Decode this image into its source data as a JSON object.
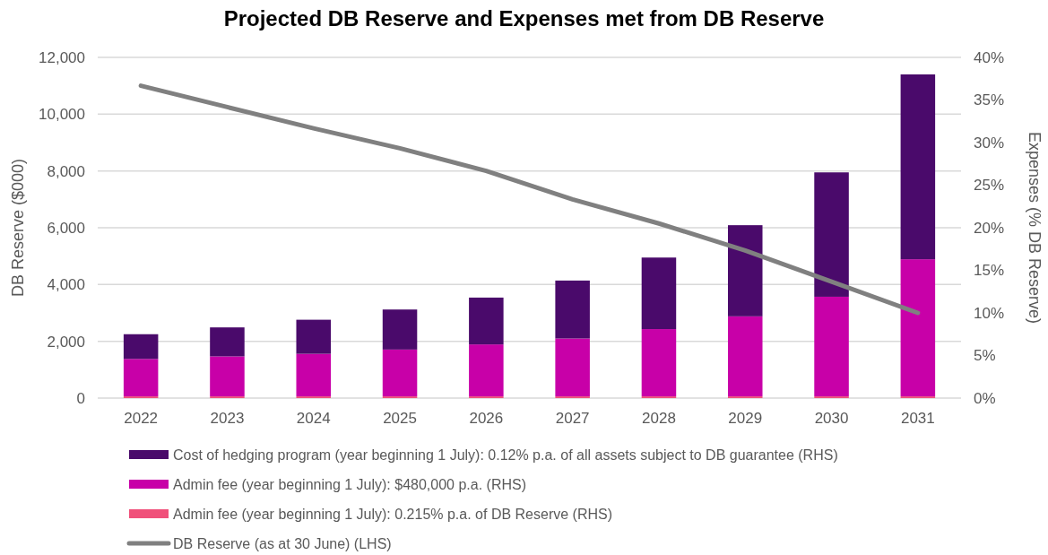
{
  "chart_data": {
    "type": "bar",
    "title": "Projected DB Reserve and Expenses met from DB Reserve",
    "ylabel": "DB Reserve ($000)",
    "y2label": "Expenses (% DB Reserve)",
    "categories": [
      "2022",
      "2023",
      "2024",
      "2025",
      "2026",
      "2027",
      "2028",
      "2029",
      "2030",
      "2031"
    ],
    "stacked": true,
    "grid": "y",
    "legend": "bottom",
    "ylim": [
      0,
      12000
    ],
    "yticks": [
      0,
      {
        "value": 2000,
        "label": "2,000"
      },
      {
        "value": 4000,
        "label": "4,000"
      },
      {
        "value": 6000,
        "label": "6,000"
      },
      {
        "value": 8000,
        "label": "8,000"
      },
      {
        "value": 10000,
        "label": "10,000"
      },
      {
        "value": 12000,
        "label": "12,000"
      }
    ],
    "y2lim": [
      0,
      40
    ],
    "y2ticks": [
      {
        "value": 0,
        "label": "0%"
      },
      {
        "value": 5,
        "label": "5%"
      },
      {
        "value": 10,
        "label": "10%"
      },
      {
        "value": 15,
        "label": "15%"
      },
      {
        "value": 20,
        "label": "20%"
      },
      {
        "value": 25,
        "label": "25%"
      },
      {
        "value": 30,
        "label": "30%"
      },
      {
        "value": 35,
        "label": "35%"
      },
      {
        "value": 40,
        "label": "40%"
      }
    ],
    "series": [
      {
        "name": "Admin fee (year beginning 1 July): 0.215% p.a. of DB Reserve (RHS)",
        "axis": "y2",
        "color": "#f0507a",
        "values": [
          0.2,
          0.2,
          0.2,
          0.2,
          0.2,
          0.2,
          0.2,
          0.2,
          0.2,
          0.2
        ]
      },
      {
        "name": "Admin fee (year beginning 1 July): $480,000 p.a. (RHS)",
        "axis": "y2",
        "color": "#c800a8",
        "values": [
          4.4,
          4.7,
          5.0,
          5.5,
          6.1,
          6.8,
          7.9,
          9.4,
          11.7,
          16.1
        ]
      },
      {
        "name": "Cost of hedging program (year beginning 1 July): 0.12% p.a. of all assets subject to DB guarantee (RHS)",
        "axis": "y2",
        "color": "#4a0a6b",
        "values": [
          2.9,
          3.4,
          4.0,
          4.7,
          5.5,
          6.8,
          8.4,
          10.7,
          14.6,
          21.7
        ]
      },
      {
        "name": "DB Reserve (as at 30 June) (LHS)",
        "type": "line",
        "axis": "y",
        "color": "#808080",
        "marker": "none",
        "line_style": "solid",
        "values": [
          11000,
          10250,
          9500,
          8800,
          8000,
          7000,
          6150,
          5200,
          4100,
          3000
        ]
      }
    ]
  }
}
